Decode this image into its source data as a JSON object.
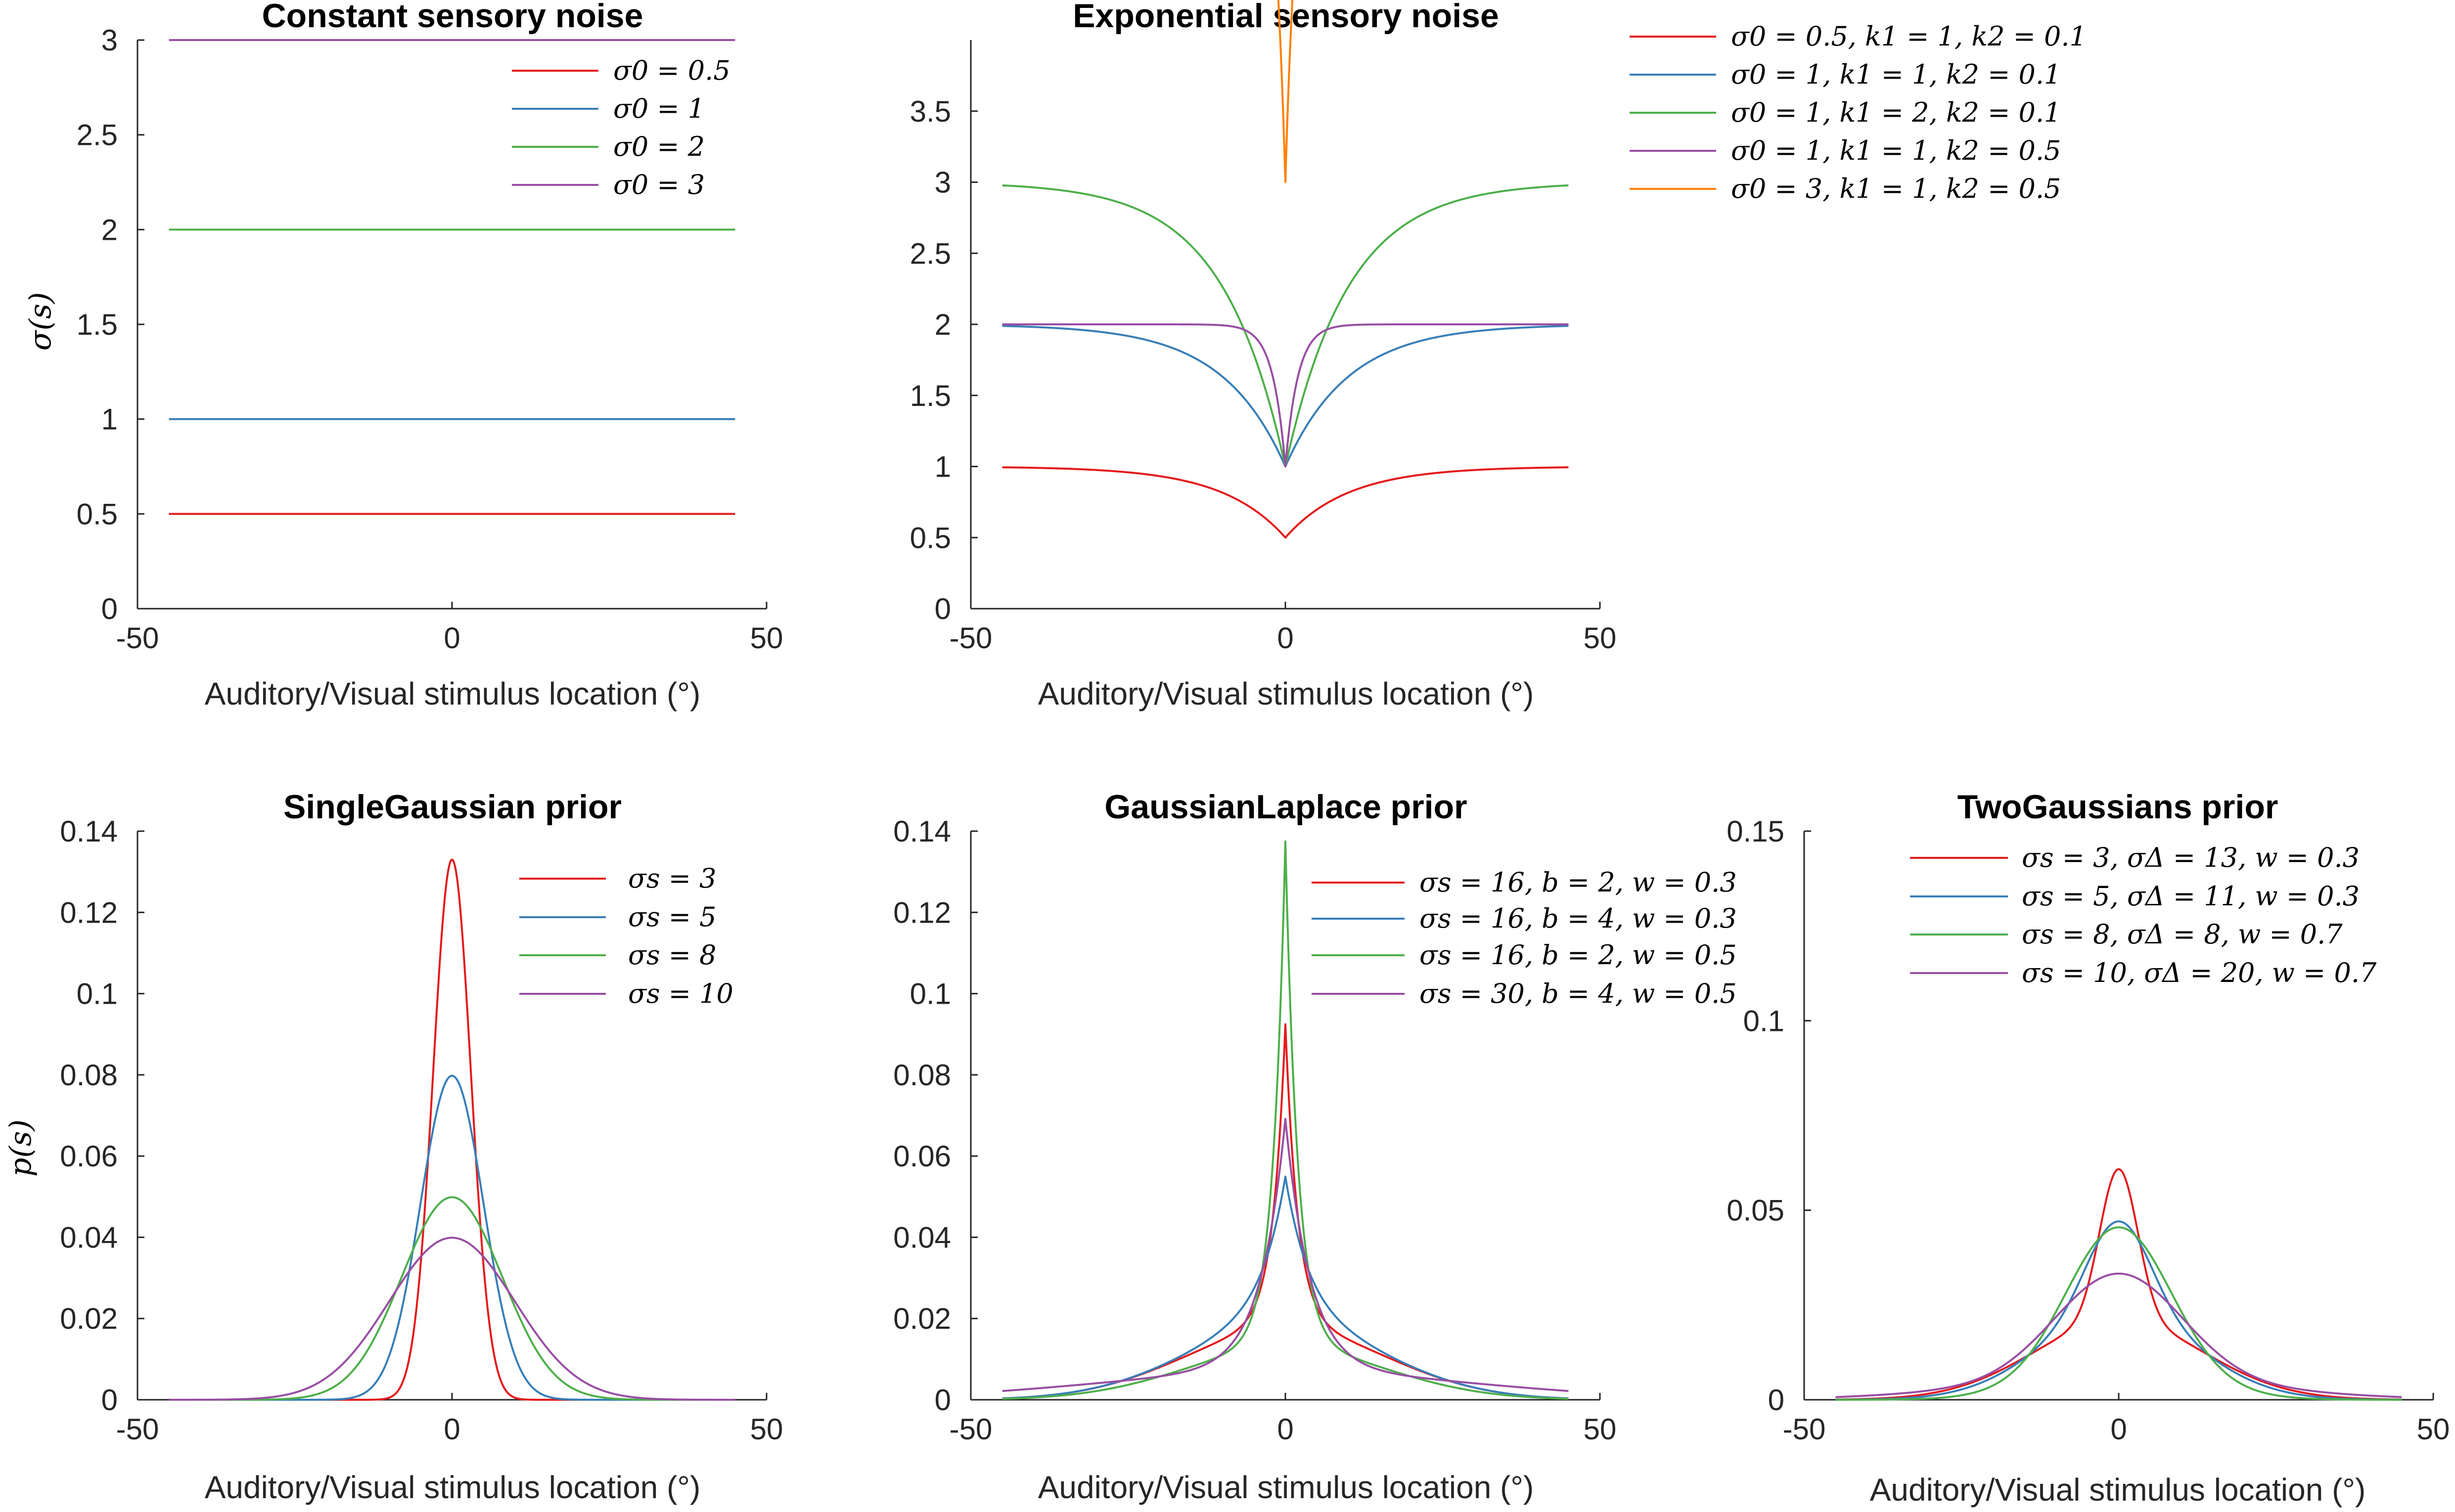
{
  "colors": {
    "red": "#e41a1c",
    "blue": "#377eb8",
    "green": "#4daf4a",
    "purple": "#984ea3",
    "orange": "#ff7f00"
  },
  "chart_data": [
    {
      "id": "p1",
      "type": "line",
      "title": "Constant sensory noise",
      "xlabel": "Auditory/Visual stimulus location (°)",
      "ylabel": "σ(s)",
      "xlim": [
        -50,
        50
      ],
      "ylim": [
        0,
        3
      ],
      "xticks": [
        -50,
        0,
        50
      ],
      "xtick_labels": [
        "-50",
        "0",
        "50"
      ],
      "yticks": [
        0,
        0.5,
        1,
        1.5,
        2,
        2.5,
        3
      ],
      "ytick_labels": [
        "0",
        "0.5",
        "1",
        "1.5",
        "2",
        "2.5",
        "3"
      ],
      "legend_position": "top-right",
      "series": [
        {
          "name": "σ0 = 0.5",
          "color": "red",
          "model": "const",
          "params": {
            "c": 0.5
          }
        },
        {
          "name": "σ0 = 1",
          "color": "blue",
          "model": "const",
          "params": {
            "c": 1
          }
        },
        {
          "name": "σ0 = 2",
          "color": "green",
          "model": "const",
          "params": {
            "c": 2
          }
        },
        {
          "name": "σ0 = 3",
          "color": "purple",
          "model": "const",
          "params": {
            "c": 3
          }
        }
      ]
    },
    {
      "id": "p2",
      "type": "line",
      "title": "Exponential sensory noise",
      "xlabel": "Auditory/Visual stimulus location (°)",
      "ylabel": "",
      "xlim": [
        -50,
        50
      ],
      "ylim": [
        0,
        4
      ],
      "xticks": [
        -50,
        0,
        50
      ],
      "xtick_labels": [
        "-50",
        "0",
        "50"
      ],
      "yticks": [
        0,
        0.5,
        1,
        1.5,
        2,
        2.5,
        3,
        3.5
      ],
      "ytick_labels": [
        "0",
        "0.5",
        "1",
        "1.5",
        "2",
        "2.5",
        "3",
        "3.5"
      ],
      "legend_position": "outside-right",
      "series": [
        {
          "name": "σ0 = 0.5, k1 = 1, k2 = 0.1",
          "color": "red",
          "model": "exp",
          "params": {
            "s0": 0.5,
            "k1": 1,
            "k2": 0.1
          }
        },
        {
          "name": "σ0 = 1, k1 = 1, k2 = 0.1",
          "color": "blue",
          "model": "exp",
          "params": {
            "s0": 1,
            "k1": 1,
            "k2": 0.1
          }
        },
        {
          "name": "σ0 = 1, k1 = 2, k2 = 0.1",
          "color": "green",
          "model": "exp",
          "params": {
            "s0": 1,
            "k1": 2,
            "k2": 0.1
          }
        },
        {
          "name": "σ0 = 1, k1 = 1, k2 = 0.5",
          "color": "purple",
          "model": "exp",
          "params": {
            "s0": 1,
            "k1": 1,
            "k2": 0.5
          }
        },
        {
          "name": "σ0 = 3, k1 = 1, k2 = 0.5",
          "color": "orange",
          "model": "exp",
          "params": {
            "s0": 3,
            "k1": 1,
            "k2": 0.5
          }
        }
      ]
    },
    {
      "id": "p3",
      "type": "line",
      "title": "SingleGaussian prior",
      "xlabel": "Auditory/Visual stimulus location (°)",
      "ylabel": "p(s)",
      "xlim": [
        -50,
        50
      ],
      "ylim": [
        0,
        0.14
      ],
      "xticks": [
        -50,
        0,
        50
      ],
      "xtick_labels": [
        "-50",
        "0",
        "50"
      ],
      "yticks": [
        0,
        0.02,
        0.04,
        0.06,
        0.08,
        0.1,
        0.12,
        0.14
      ],
      "ytick_labels": [
        "0",
        "0.02",
        "0.04",
        "0.06",
        "0.08",
        "0.1",
        "0.12",
        "0.14"
      ],
      "legend_position": "top-right",
      "series": [
        {
          "name": "σs = 3",
          "color": "red",
          "model": "gauss",
          "params": {
            "s": 3
          }
        },
        {
          "name": "σs = 5",
          "color": "blue",
          "model": "gauss",
          "params": {
            "s": 5
          }
        },
        {
          "name": "σs = 8",
          "color": "green",
          "model": "gauss",
          "params": {
            "s": 8
          }
        },
        {
          "name": "σs = 10",
          "color": "purple",
          "model": "gauss",
          "params": {
            "s": 10
          }
        }
      ]
    },
    {
      "id": "p4",
      "type": "line",
      "title": "GaussianLaplace prior",
      "xlabel": "Auditory/Visual stimulus location (°)",
      "ylabel": "",
      "xlim": [
        -50,
        50
      ],
      "ylim": [
        0,
        0.14
      ],
      "xticks": [
        -50,
        0,
        50
      ],
      "xtick_labels": [
        "-50",
        "0",
        "50"
      ],
      "yticks": [
        0,
        0.02,
        0.04,
        0.06,
        0.08,
        0.1,
        0.12,
        0.14
      ],
      "ytick_labels": [
        "0",
        "0.02",
        "0.04",
        "0.06",
        "0.08",
        "0.1",
        "0.12",
        "0.14"
      ],
      "legend_position": "top-right",
      "series": [
        {
          "name": "σs = 16, b = 2, w = 0.3",
          "color": "red",
          "model": "gl",
          "params": {
            "s": 16,
            "b": 2,
            "w": 0.3
          }
        },
        {
          "name": "σs = 16, b = 4, w = 0.3",
          "color": "blue",
          "model": "gl",
          "params": {
            "s": 16,
            "b": 4,
            "w": 0.3
          }
        },
        {
          "name": "σs = 16, b = 2, w = 0.5",
          "color": "green",
          "model": "gl",
          "params": {
            "s": 16,
            "b": 2,
            "w": 0.5
          }
        },
        {
          "name": "σs = 30, b = 4, w = 0.5",
          "color": "purple",
          "model": "gl",
          "params": {
            "s": 30,
            "b": 4,
            "w": 0.5
          }
        }
      ]
    },
    {
      "id": "p5",
      "type": "line",
      "title": "TwoGaussians prior",
      "xlabel": "Auditory/Visual stimulus location (°)",
      "ylabel": "",
      "xlim": [
        -50,
        50
      ],
      "ylim": [
        0,
        0.15
      ],
      "xticks": [
        -50,
        0,
        50
      ],
      "xtick_labels": [
        "-50",
        "0",
        "50"
      ],
      "yticks": [
        0,
        0.05,
        0.1,
        0.15
      ],
      "ytick_labels": [
        "0",
        "0.05",
        "0.1",
        "0.15"
      ],
      "legend_position": "top-right",
      "series": [
        {
          "name": "σs = 3, σΔ = 13, w = 0.3",
          "color": "red",
          "model": "g2",
          "params": {
            "s": 3,
            "d": 13,
            "w": 0.3
          }
        },
        {
          "name": "σs = 5, σΔ = 11, w = 0.3",
          "color": "blue",
          "model": "g2",
          "params": {
            "s": 5,
            "d": 11,
            "w": 0.3
          }
        },
        {
          "name": "σs = 8, σΔ = 8, w = 0.7",
          "color": "green",
          "model": "g2",
          "params": {
            "s": 8,
            "d": 8,
            "w": 0.7
          }
        },
        {
          "name": "σs = 10, σΔ = 20, w = 0.7",
          "color": "purple",
          "model": "g2",
          "params": {
            "s": 10,
            "d": 20,
            "w": 0.7
          }
        }
      ]
    }
  ]
}
